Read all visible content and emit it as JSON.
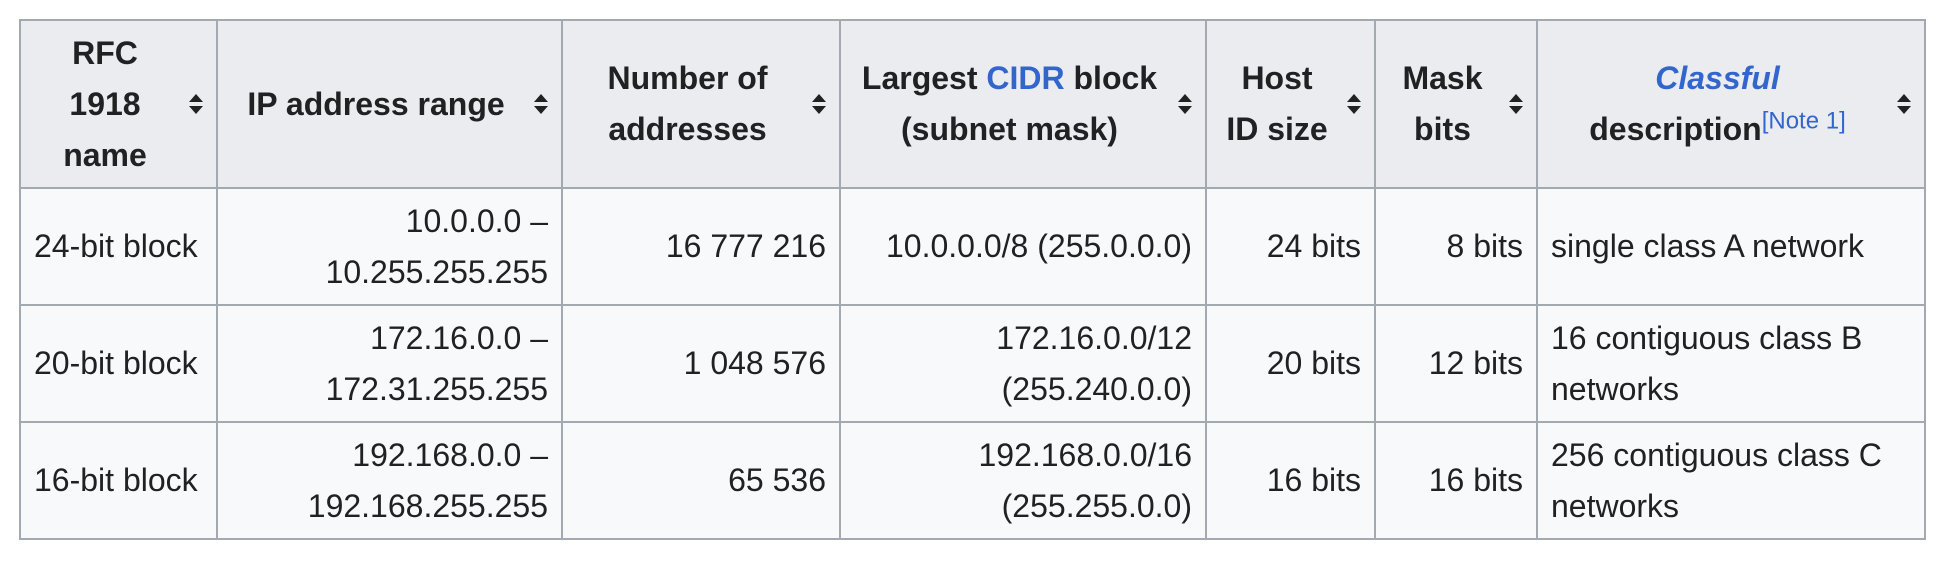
{
  "table": {
    "headers": [
      {
        "lines": [
          "RFC",
          "1918",
          "name"
        ]
      },
      {
        "text": "IP address range"
      },
      {
        "lines": [
          "Number of",
          "addresses"
        ]
      },
      {
        "pre": "Largest ",
        "link": "CIDR",
        "post": " block",
        "line2": "(subnet mask)"
      },
      {
        "lines": [
          "Host",
          "ID size"
        ]
      },
      {
        "lines": [
          "Mask",
          "bits"
        ]
      },
      {
        "link": "Classful",
        "line2": "description",
        "note": "[Note 1]"
      }
    ],
    "rows": [
      {
        "name": "24-bit block",
        "range": [
          "10.0.0.0 –",
          "10.255.255.255"
        ],
        "count": "16 777 216",
        "cidr": [
          "10.0.0.0/8 (255.0.0.0)"
        ],
        "host": "24 bits",
        "mask": "8 bits",
        "desc": [
          "single class A network"
        ]
      },
      {
        "name": "20-bit block",
        "range": [
          "172.16.0.0 –",
          "172.31.255.255"
        ],
        "count": "1 048 576",
        "cidr": [
          "172.16.0.0/12",
          "(255.240.0.0)"
        ],
        "host": "20 bits",
        "mask": "12 bits",
        "desc": [
          "16 contiguous class B",
          "networks"
        ]
      },
      {
        "name": "16-bit block",
        "range": [
          "192.168.0.0 –",
          "192.168.255.255"
        ],
        "count": "65 536",
        "cidr": [
          "192.168.0.0/16",
          "(255.255.0.0)"
        ],
        "host": "16 bits",
        "mask": "16 bits",
        "desc": [
          "256 contiguous class C",
          "networks"
        ]
      }
    ]
  },
  "colors": {
    "link": "#3366cc",
    "header_bg": "#eaecf0",
    "cell_bg": "#f8f9fa",
    "border": "#a2a9b1"
  },
  "icons": {
    "sort": "sort-icon"
  }
}
